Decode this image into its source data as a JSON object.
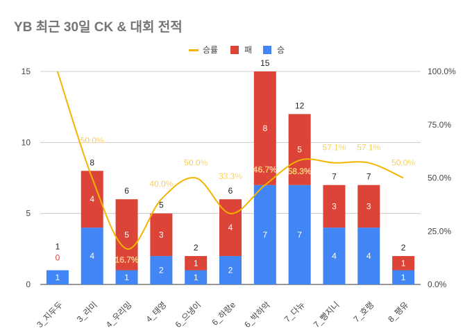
{
  "chart_data": {
    "type": "bar",
    "stacked": true,
    "title": "YB 최근 30일 CK & 대회 전적",
    "categories": [
      "3_지두두",
      "3_라미",
      "4_우리밍",
      "4_태영",
      "6_으냉이",
      "6_하랑e",
      "6_박하악",
      "7_다뉴",
      "7_빵지니",
      "7_호랭",
      "8_팽유"
    ],
    "series": [
      {
        "name": "승",
        "type": "bar",
        "axis": "left",
        "color": "#4285f4",
        "values": [
          1,
          4,
          1,
          2,
          1,
          2,
          7,
          7,
          4,
          4,
          1
        ]
      },
      {
        "name": "패",
        "type": "bar",
        "axis": "left",
        "color": "#db4437",
        "values": [
          0,
          4,
          5,
          3,
          1,
          4,
          8,
          5,
          3,
          3,
          1
        ]
      },
      {
        "name": "승률",
        "type": "line",
        "axis": "right",
        "color": "#f4b400",
        "values": [
          100,
          50,
          16.7,
          40,
          50,
          33.3,
          46.7,
          58.3,
          57.1,
          57.1,
          50
        ],
        "labels": [
          "",
          "50.0%",
          "16.7%",
          "40.0%",
          "50.0%",
          "33.3%",
          "46.7%",
          "58.3%",
          "57.1%",
          "57.1%",
          "50.0%"
        ]
      }
    ],
    "totals": [
      1,
      8,
      6,
      5,
      2,
      6,
      15,
      12,
      7,
      7,
      2
    ],
    "legend": {
      "position": "top-right",
      "entries": [
        "승률",
        "패",
        "승"
      ]
    },
    "y_left": {
      "range": [
        0,
        15
      ],
      "ticks": [
        "0",
        "5",
        "10",
        "15"
      ]
    },
    "y_right": {
      "range": [
        0,
        100
      ],
      "ticks": [
        "0.0%",
        "25.0%",
        "50.0%",
        "75.0%",
        "100.0%"
      ]
    },
    "grid": true
  }
}
